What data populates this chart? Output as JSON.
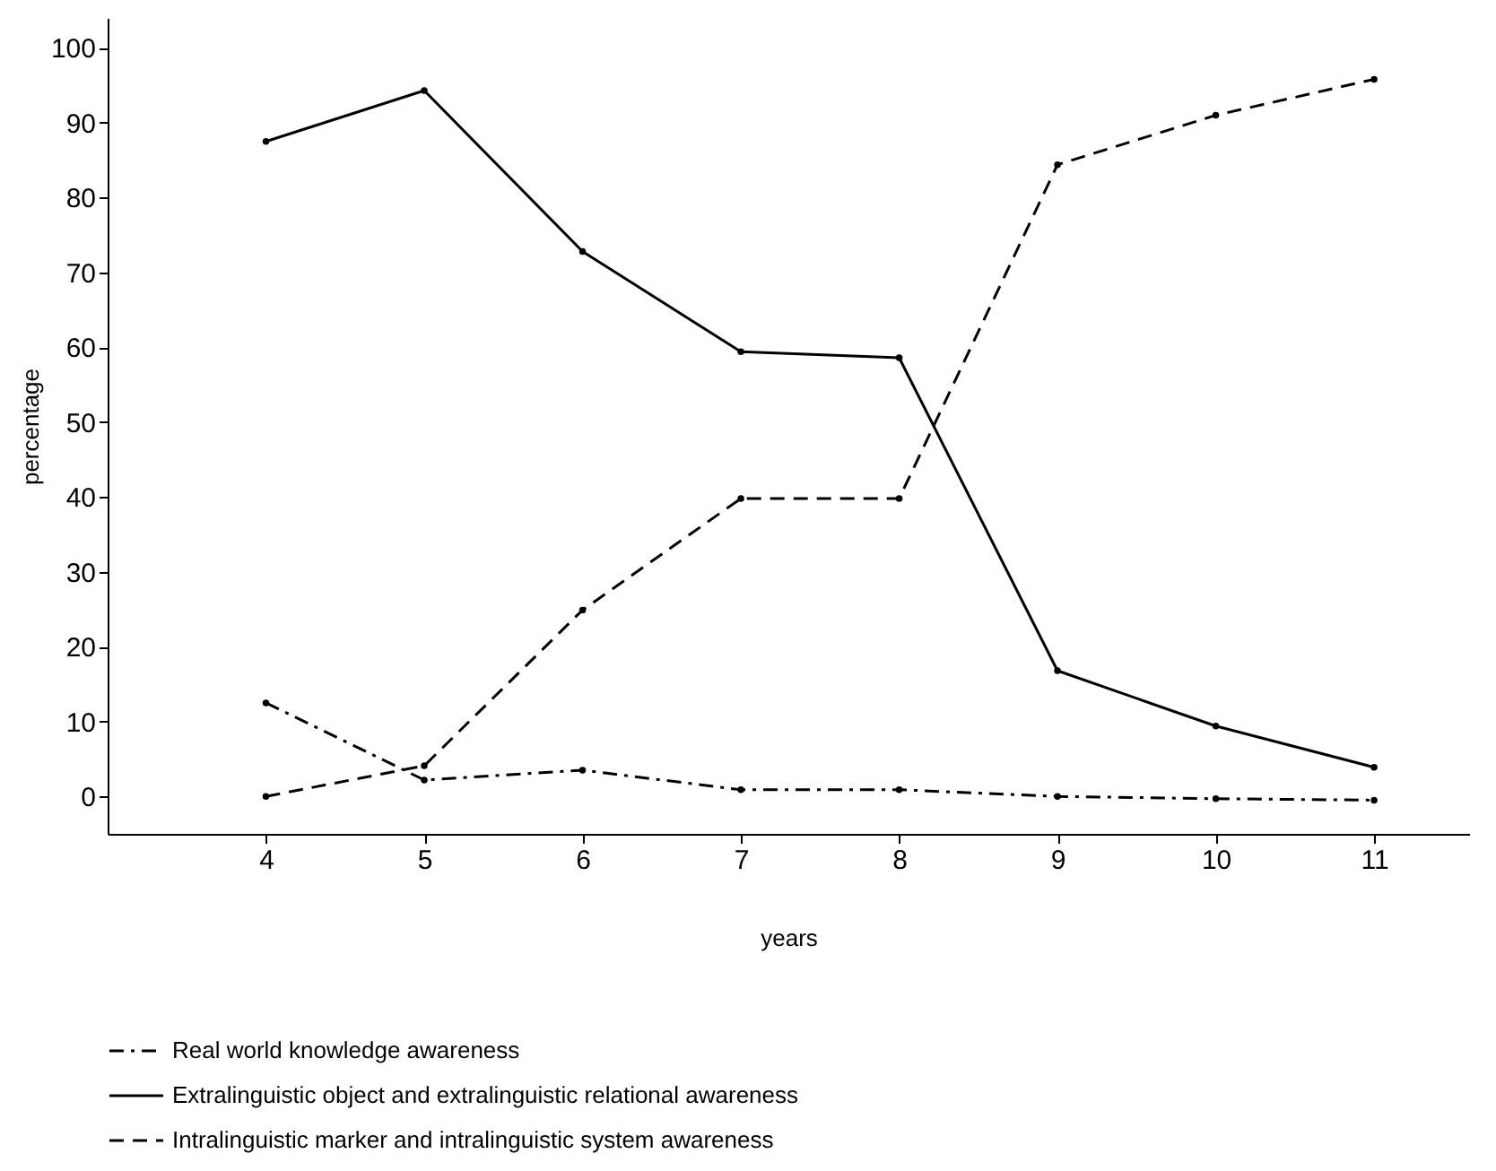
{
  "chart_data": {
    "type": "line",
    "xlabel": "years",
    "ylabel": "percentage",
    "x": [
      4,
      5,
      6,
      7,
      8,
      9,
      10,
      11
    ],
    "xlim": [
      3,
      11.6
    ],
    "xticks": [
      4,
      5,
      6,
      7,
      8,
      9,
      10,
      11
    ],
    "ylim": [
      -5,
      104
    ],
    "yticks": [
      0,
      10,
      20,
      30,
      40,
      50,
      60,
      70,
      80,
      90,
      100
    ],
    "grid": false,
    "legend": "bottom",
    "marker": "circle",
    "series": [
      {
        "name": "Real world knowledge awareness",
        "color": "#000000",
        "line_style": "dashdot",
        "values": [
          12.5,
          2.2,
          3.5,
          0.9,
          0.9,
          0,
          -0.3,
          -0.5
        ]
      },
      {
        "name": "Extralinguistic object and extralinguistic relational awareness",
        "color": "#000000",
        "line_style": "solid",
        "values": [
          87.5,
          94.3,
          72.8,
          59.4,
          58.6,
          16.8,
          9.4,
          3.9
        ]
      },
      {
        "name": "Intralinguistic marker and intralinguistic system awareness",
        "color": "#000000",
        "line_style": "dashed",
        "values": [
          0,
          4.1,
          24.9,
          39.8,
          39.8,
          84.4,
          91,
          95.8
        ]
      }
    ]
  }
}
